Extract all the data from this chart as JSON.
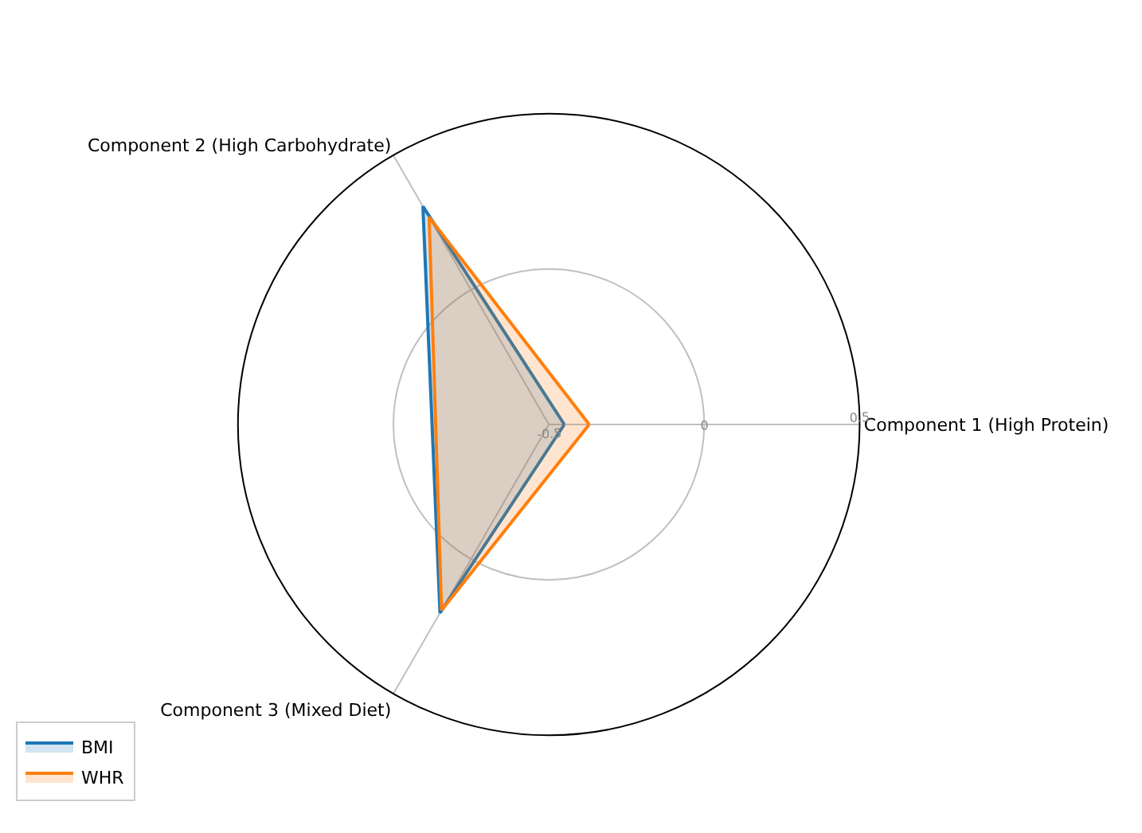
{
  "chart_data": {
    "type": "radar",
    "categories": [
      "Component 1 (High Protein)",
      "Component 3 (Mixed Diet)",
      "Component 2 (High Carbohydrate)"
    ],
    "series": [
      {
        "name": "BMI",
        "color": "#1f77b4",
        "values": [
          -0.45,
          0.2,
          0.31
        ]
      },
      {
        "name": "WHR",
        "color": "#ff7f0e",
        "values": [
          -0.37,
          0.19,
          0.27
        ]
      }
    ],
    "ylim": [
      -0.5,
      0.5
    ],
    "yticks": [
      -0.5,
      0,
      0.5
    ],
    "grid": true,
    "legend": "bottom left"
  }
}
